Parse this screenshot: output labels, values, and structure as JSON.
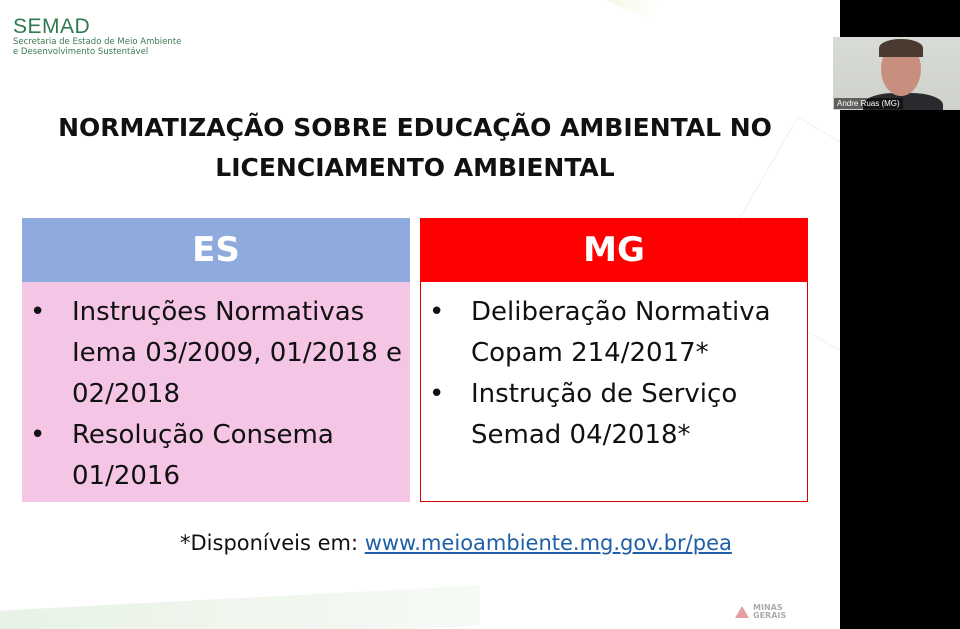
{
  "logo": {
    "name": "SEMAD",
    "subtitle_line1": "Secretaria de Estado de Meio Ambiente",
    "subtitle_line2": "e Desenvolvimento Sustentável"
  },
  "slide": {
    "title_line1": "NORMATIZAÇÃO SOBRE EDUCAÇÃO AMBIENTAL NO",
    "title_line2": "LICENCIAMENTO AMBIENTAL",
    "columns": [
      {
        "header": "ES",
        "header_color": "#8faadc",
        "body_color": "#f5c5e6",
        "items": [
          "Instruções Normativas Iema 03/2009, 01/2018 e 02/2018",
          "Resolução Consema 01/2016"
        ]
      },
      {
        "header": "MG",
        "header_color": "#ff0000",
        "body_color": "#ffffff",
        "items": [
          "Deliberação Normativa Copam 214/2017*",
          "Instrução de Serviço Semad 04/2018*"
        ]
      }
    ],
    "footnote_prefix": "*Disponíveis em: ",
    "footnote_link": "www.meioambiente.mg.gov.br/pea",
    "footer_logo": "MINAS GERAIS"
  },
  "video": {
    "participant_name": "Andre Ruas (MG)"
  }
}
